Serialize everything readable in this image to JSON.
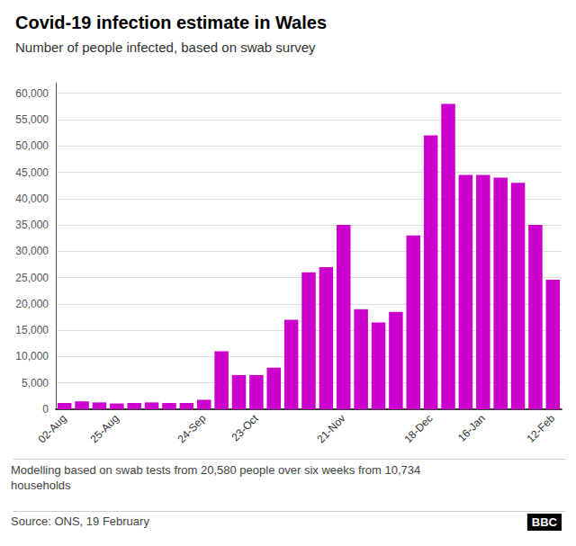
{
  "chart_data": {
    "type": "bar",
    "title": "Covid-19 infection estimate in Wales",
    "subtitle": "Number of people infected, based on swab survey",
    "footnote": "Modelling based on swab tests from 20,580 people over six weeks from 10,734\nhouseholds",
    "source": "Source: ONS, 19 February",
    "annotations": [
      "BBC"
    ],
    "categories": [
      "02-Aug",
      null,
      null,
      "25-Aug",
      null,
      null,
      null,
      null,
      "24-Sep",
      null,
      null,
      "23-Oct",
      null,
      null,
      null,
      null,
      "21-Nov",
      null,
      null,
      null,
      null,
      "18-Dec",
      null,
      null,
      "16-Jan",
      null,
      null,
      null,
      "12-Feb"
    ],
    "values": [
      1200,
      1500,
      1300,
      1100,
      1200,
      1300,
      1200,
      1200,
      1800,
      11000,
      6500,
      6500,
      7900,
      17000,
      26000,
      27000,
      35000,
      19000,
      16500,
      18500,
      33000,
      52000,
      58000,
      44500,
      44500,
      44000,
      43000,
      35000,
      24600
    ],
    "color": "#cc00cc",
    "ylim": [
      0,
      62000
    ],
    "yticks": [
      0,
      {
        "value": 5000,
        "label": "5,000"
      },
      {
        "value": 10000,
        "label": "10,000"
      },
      {
        "value": 15000,
        "label": "15,000"
      },
      {
        "value": 20000,
        "label": "20,000"
      },
      {
        "value": 25000,
        "label": "25,000"
      },
      {
        "value": 30000,
        "label": "30,000"
      },
      {
        "value": 35000,
        "label": "35,000"
      },
      {
        "value": 40000,
        "label": "40,000"
      },
      {
        "value": 45000,
        "label": "45,000"
      },
      {
        "value": 50000,
        "label": "50,000"
      },
      {
        "value": 55000,
        "label": "55,000"
      },
      {
        "value": 60000,
        "label": "60,000"
      }
    ],
    "grid": true
  }
}
